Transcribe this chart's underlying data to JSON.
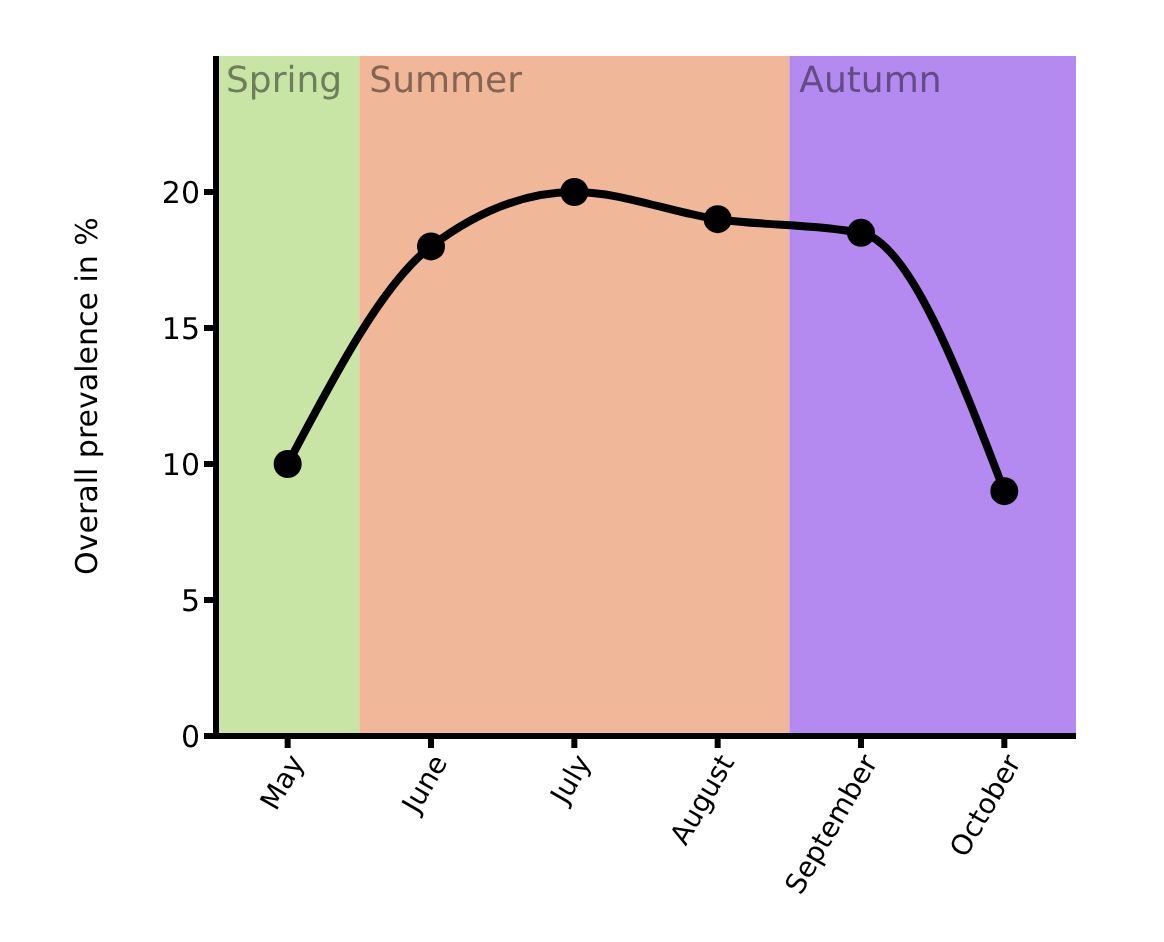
{
  "chart_data": {
    "type": "line",
    "ylabel": "Overall prevalence in %",
    "categories": [
      "May",
      "June",
      "July",
      "August",
      "September",
      "October"
    ],
    "series": [
      {
        "color": "#000000",
        "values": [
          10,
          18,
          20,
          19,
          18.5,
          9
        ]
      }
    ],
    "ylim": [
      0,
      25
    ],
    "yticks": [
      0,
      5,
      10,
      15,
      20
    ],
    "grid": false,
    "legend": false,
    "marker": "circle",
    "line_style": "solid",
    "bands": [
      {
        "axis": "x",
        "from": "May",
        "to": "May",
        "label": "Spring",
        "color": "#c8e5a6"
      },
      {
        "axis": "x",
        "from": "June",
        "to": "August",
        "label": "Summer",
        "color": "#f0b898"
      },
      {
        "axis": "x",
        "from": "September",
        "to": "October",
        "label": "Autumn",
        "color": "#b48af0"
      }
    ]
  }
}
